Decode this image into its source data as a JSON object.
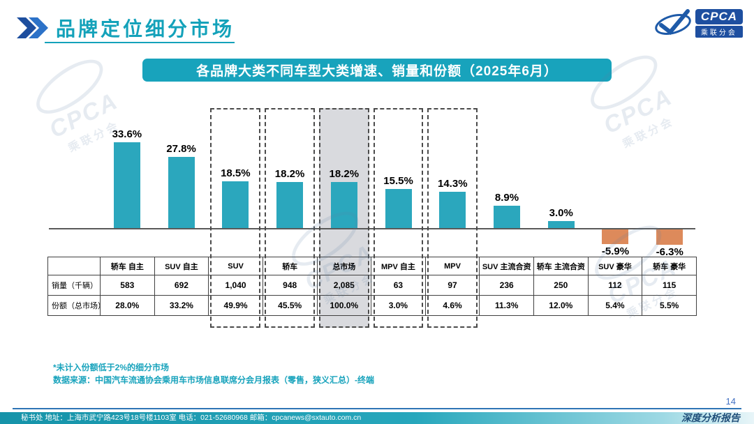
{
  "page": {
    "title": "品牌定位细分市场",
    "banner": "各品牌大类不同车型大类增速、销量和份额（2025年6月）",
    "footnote1": "*未计入份额低于2%的细分市场",
    "footnote2": "数据来源：中国汽车流通协会乘用车市场信息联席分会月报表（零售，狭义汇总）-终端",
    "page_number": "14",
    "report_label": "深度分析报告",
    "footer_contact": "秘书处  地址：上海市武宁路423号18号楼1103室  电话：021-52680968  邮箱：cpcanews@sxtauto.com.cn"
  },
  "logo": {
    "name": "CPCA",
    "subtitle": "乘联分会"
  },
  "watermark": {
    "text_main": "CPCA",
    "text_sub": "乘联分会"
  },
  "chart_data": {
    "type": "bar",
    "title": "各品牌大类不同车型大类增速、销量和份额（2025年6月）",
    "xlabel": "",
    "ylabel": "",
    "ylim": [
      -10,
      40
    ],
    "grid": false,
    "legend": "none",
    "categories": [
      "轿车 自主",
      "SUV 自主",
      "SUV",
      "轿车",
      "总市场",
      "MPV 自主",
      "MPV",
      "SUV 主流合资",
      "轿车 主流合资",
      "SUV 豪华",
      "轿车 豪华"
    ],
    "growth_pct": [
      33.6,
      27.8,
      18.5,
      18.2,
      18.2,
      15.5,
      14.3,
      8.9,
      3.0,
      -5.9,
      -6.3
    ],
    "labels": [
      "33.6%",
      "27.8%",
      "18.5%",
      "18.2%",
      "18.2%",
      "15.5%",
      "14.3%",
      "8.9%",
      "3.0%",
      "-5.9%",
      "-6.3%"
    ],
    "sales_row_label": "销量（千辆）",
    "sales": [
      "583",
      "692",
      "1,040",
      "948",
      "2,085",
      "63",
      "97",
      "236",
      "250",
      "112",
      "115"
    ],
    "share_row_label": "份额（总市场）",
    "share": [
      "28.0%",
      "33.2%",
      "49.9%",
      "45.5%",
      "100.0%",
      "3.0%",
      "4.6%",
      "11.3%",
      "12.0%",
      "5.4%",
      "5.5%"
    ],
    "highlighted_dashed": [
      "SUV",
      "轿车",
      "总市场",
      "MPV 自主",
      "MPV"
    ],
    "highlight_filled": "总市场",
    "positive_color": "#2BA7BD",
    "negative_color": "#DD8A5B"
  }
}
